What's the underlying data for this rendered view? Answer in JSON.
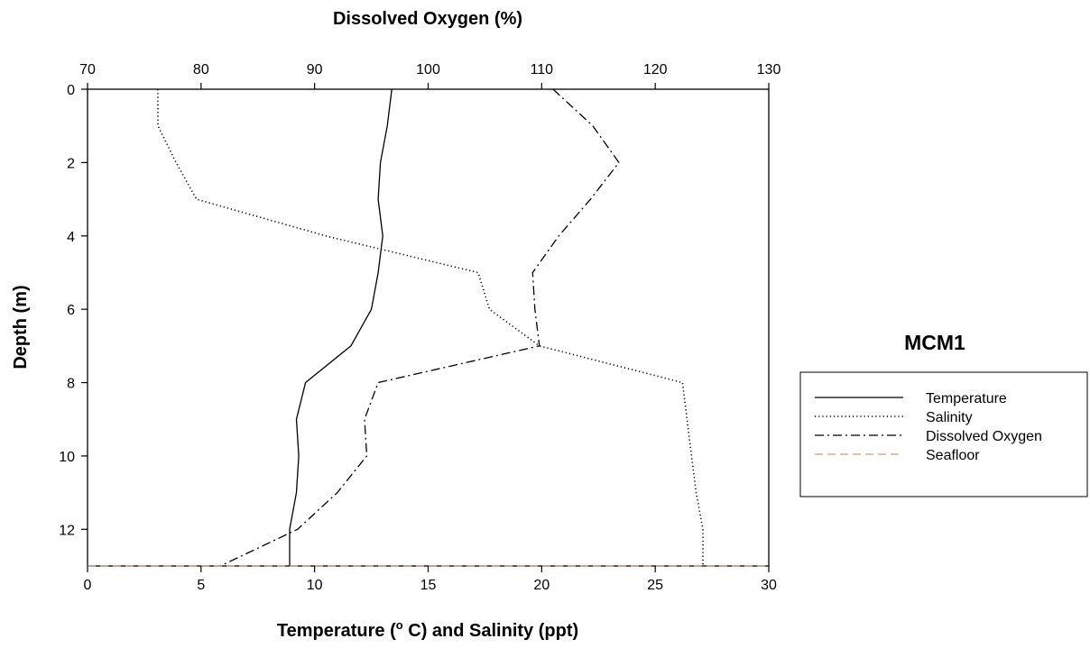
{
  "chart_data": {
    "type": "line",
    "title": "MCM1",
    "xlabel_bottom": "Temperature (o C) and Salinity (ppt)",
    "xlabel_bottom_parts": {
      "before": "Temperature (",
      "sup": "o",
      "after": " C) and Salinity (ppt)"
    },
    "xlabel_top": "Dissolved Oxygen (%)",
    "ylabel": "Depth (m)",
    "xlim_bottom": [
      0,
      30
    ],
    "xlim_top": [
      70,
      130
    ],
    "ylim": [
      0,
      13
    ],
    "y_inverted": true,
    "xticks_bottom": [
      "0",
      "5",
      "10",
      "15",
      "20",
      "25",
      "30"
    ],
    "xticks_top": [
      "70",
      "80",
      "90",
      "100",
      "110",
      "120",
      "130"
    ],
    "yticks": [
      "0",
      "2",
      "4",
      "6",
      "8",
      "10",
      "12"
    ],
    "grid": false,
    "legend_position": "right",
    "series": [
      {
        "name": "Temperature",
        "axis": "bottom",
        "style": "solid",
        "color": "#000000",
        "points": [
          [
            13.4,
            0
          ],
          [
            13.2,
            1
          ],
          [
            12.9,
            2
          ],
          [
            12.8,
            3
          ],
          [
            13.0,
            4
          ],
          [
            12.8,
            5
          ],
          [
            12.5,
            6
          ],
          [
            11.6,
            7
          ],
          [
            9.6,
            8
          ],
          [
            9.2,
            9
          ],
          [
            9.3,
            10
          ],
          [
            9.2,
            11
          ],
          [
            8.9,
            12
          ],
          [
            8.9,
            13
          ]
        ]
      },
      {
        "name": "Salinity",
        "axis": "bottom",
        "style": "dotted",
        "color": "#000000",
        "points": [
          [
            3.1,
            0
          ],
          [
            3.1,
            1
          ],
          [
            3.9,
            2
          ],
          [
            4.8,
            3
          ],
          [
            10.5,
            4
          ],
          [
            17.2,
            5
          ],
          [
            17.7,
            6
          ],
          [
            19.9,
            7
          ],
          [
            26.2,
            8
          ],
          [
            26.4,
            9
          ],
          [
            26.6,
            10
          ],
          [
            26.8,
            11
          ],
          [
            27.1,
            12
          ],
          [
            27.1,
            13
          ]
        ]
      },
      {
        "name": "Dissolved Oxygen",
        "axis": "top",
        "style": "dashdot",
        "color": "#000000",
        "points": [
          [
            111,
            0
          ],
          [
            114.5,
            1
          ],
          [
            116.8,
            2
          ],
          [
            114.3,
            3
          ],
          [
            111.5,
            4
          ],
          [
            109.2,
            5
          ],
          [
            109.4,
            6
          ],
          [
            109.8,
            7
          ],
          [
            95.6,
            8
          ],
          [
            94.4,
            9
          ],
          [
            94.6,
            10
          ],
          [
            92,
            11
          ],
          [
            88.5,
            12
          ],
          [
            81.7,
            13
          ]
        ]
      },
      {
        "name": "Seafloor",
        "axis": "bottom",
        "style": "dashed",
        "color": "#c9a078",
        "points": [
          [
            0,
            13
          ],
          [
            30,
            13
          ]
        ]
      }
    ]
  }
}
